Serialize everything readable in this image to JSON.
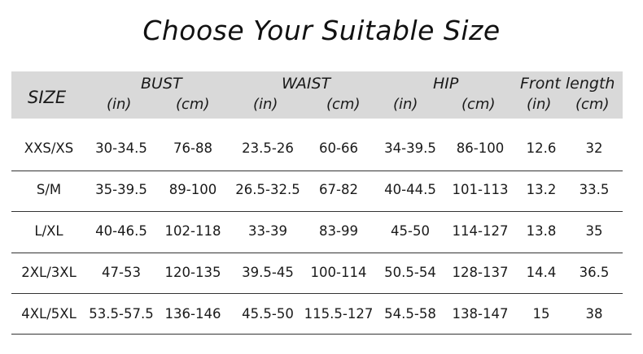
{
  "title": "Choose Your Suitable Size",
  "header": {
    "size": "SIZE",
    "groups": [
      "BUST",
      "WAIST",
      "HIP",
      "Front length"
    ],
    "units": [
      "(in)",
      "(cm)",
      "(in)",
      "(cm)",
      "(in)",
      "(cm)",
      "(in)",
      "(cm)"
    ]
  },
  "rows": [
    [
      "XXS/XS",
      "30-34.5",
      "76-88",
      "23.5-26",
      "60-66",
      "34-39.5",
      "86-100",
      "12.6",
      "32"
    ],
    [
      "S/M",
      "35-39.5",
      "89-100",
      "26.5-32.5",
      "67-82",
      "40-44.5",
      "101-113",
      "13.2",
      "33.5"
    ],
    [
      "L/XL",
      "40-46.5",
      "102-118",
      "33-39",
      "83-99",
      "45-50",
      "114-127",
      "13.8",
      "35"
    ],
    [
      "2XL/3XL",
      "47-53",
      "120-135",
      "39.5-45",
      "100-114",
      "50.5-54",
      "128-137",
      "14.4",
      "36.5"
    ],
    [
      "4XL/5XL",
      "53.5-57.5",
      "136-146",
      "45.5-50",
      "115.5-127",
      "54.5-58",
      "138-147",
      "15",
      "38"
    ]
  ],
  "colors": {
    "header_background": "#d9d9d9",
    "text": "#1a1a1a",
    "rule": "#333333"
  }
}
